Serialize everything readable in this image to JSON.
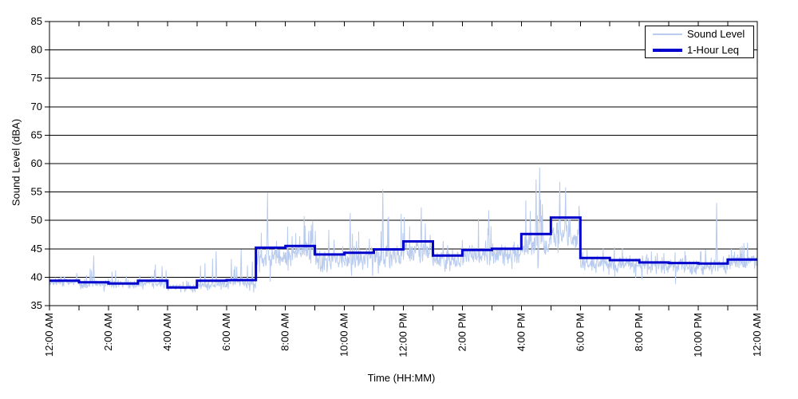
{
  "chart_data": {
    "type": "line",
    "title": "",
    "xlabel": "Time (HH:MM)",
    "ylabel": "Sound Level (dBA)",
    "ylim": [
      35,
      85
    ],
    "ytick_step": 5,
    "ytick_labels": [
      "35",
      "40",
      "45",
      "50",
      "55",
      "60",
      "65",
      "70",
      "75",
      "80",
      "85"
    ],
    "x_hours_range": [
      0,
      24
    ],
    "xtick_major_every_hours": 2,
    "xtick_minor_every_hours": 1,
    "xtick_labels": [
      "12:00 AM",
      "2:00 AM",
      "4:00 AM",
      "6:00 AM",
      "8:00 AM",
      "10:00 AM",
      "12:00 PM",
      "2:00 PM",
      "4:00 PM",
      "6:00 PM",
      "8:00 PM",
      "10:00 PM",
      "12:00 AM"
    ],
    "grid": "horizontal-black-every-5dB",
    "legend_position": "top-right",
    "colors": {
      "sound_level": "#b9cbee",
      "one_hour_leq": "#0000cc",
      "axis": "#000000",
      "background": "#ffffff"
    },
    "series": [
      {
        "name": "Sound Level",
        "type": "noisy-line",
        "color": "#b9cbee",
        "stroke_width": 1,
        "samples_per_hour": 66,
        "hourly_envelope": [
          {
            "hour": 0,
            "base": 39.2,
            "spread": 0.9,
            "spike": 41.8
          },
          {
            "hour": 1,
            "base": 38.8,
            "spread": 0.9,
            "spike": 43.5
          },
          {
            "hour": 2,
            "base": 38.7,
            "spread": 0.9,
            "spike": 42.0
          },
          {
            "hour": 3,
            "base": 38.9,
            "spread": 1.0,
            "spike": 43.0
          },
          {
            "hour": 4,
            "base": 38.2,
            "spread": 0.8,
            "spike": 41.0
          },
          {
            "hour": 5,
            "base": 38.6,
            "spread": 0.9,
            "spike": 44.5
          },
          {
            "hour": 6,
            "base": 39.0,
            "spread": 1.0,
            "spike": 45.0
          },
          {
            "hour": 7,
            "base": 43.5,
            "spread": 2.2,
            "spike": 52.0
          },
          {
            "hour": 8,
            "base": 44.3,
            "spread": 2.2,
            "spike": 52.5
          },
          {
            "hour": 9,
            "base": 43.0,
            "spread": 2.0,
            "spike": 50.0
          },
          {
            "hour": 10,
            "base": 43.3,
            "spread": 2.0,
            "spike": 51.5
          },
          {
            "hour": 11,
            "base": 43.8,
            "spread": 2.2,
            "spike": 53.0
          },
          {
            "hour": 12,
            "base": 44.5,
            "spread": 2.2,
            "spike": 52.0
          },
          {
            "hour": 13,
            "base": 43.0,
            "spread": 2.0,
            "spike": 50.0
          },
          {
            "hour": 14,
            "base": 43.8,
            "spread": 2.1,
            "spike": 52.0
          },
          {
            "hour": 15,
            "base": 44.0,
            "spread": 2.1,
            "spike": 52.0
          },
          {
            "hour": 16,
            "base": 45.5,
            "spread": 2.3,
            "spike": 57.0
          },
          {
            "hour": 17,
            "base": 47.0,
            "spread": 2.5,
            "spike": 56.0
          },
          {
            "hour": 18,
            "base": 42.3,
            "spread": 1.6,
            "spike": 47.5
          },
          {
            "hour": 19,
            "base": 42.2,
            "spread": 1.6,
            "spike": 47.0
          },
          {
            "hour": 20,
            "base": 42.0,
            "spread": 1.5,
            "spike": 46.5
          },
          {
            "hour": 21,
            "base": 41.9,
            "spread": 1.5,
            "spike": 46.0
          },
          {
            "hour": 22,
            "base": 42.0,
            "spread": 1.5,
            "spike": 47.0
          },
          {
            "hour": 23,
            "base": 42.6,
            "spread": 1.5,
            "spike": 47.5
          }
        ],
        "notable_peaks": [
          {
            "t": 1.5,
            "value": 43.8
          },
          {
            "t": 5.65,
            "value": 44.6
          },
          {
            "t": 6.5,
            "value": 44.9
          },
          {
            "t": 7.4,
            "value": 54.9
          },
          {
            "t": 10.2,
            "value": 51.3
          },
          {
            "t": 11.3,
            "value": 55.5
          },
          {
            "t": 12.6,
            "value": 52.3
          },
          {
            "t": 14.9,
            "value": 51.8
          },
          {
            "t": 16.5,
            "value": 57.2
          },
          {
            "t": 16.62,
            "value": 59.3
          },
          {
            "t": 17.3,
            "value": 56.8
          },
          {
            "t": 17.5,
            "value": 55.8
          },
          {
            "t": 22.62,
            "value": 53.1
          }
        ]
      },
      {
        "name": "1-Hour Leq",
        "type": "step",
        "color": "#0000cc",
        "stroke_width": 3,
        "hourly_values": [
          39.4,
          39.1,
          38.9,
          39.4,
          38.2,
          39.4,
          39.5,
          45.2,
          45.5,
          44.0,
          44.3,
          44.9,
          46.3,
          43.8,
          44.8,
          45.0,
          47.6,
          50.5,
          43.4,
          43.0,
          42.6,
          42.5,
          42.4,
          43.1
        ]
      }
    ]
  }
}
